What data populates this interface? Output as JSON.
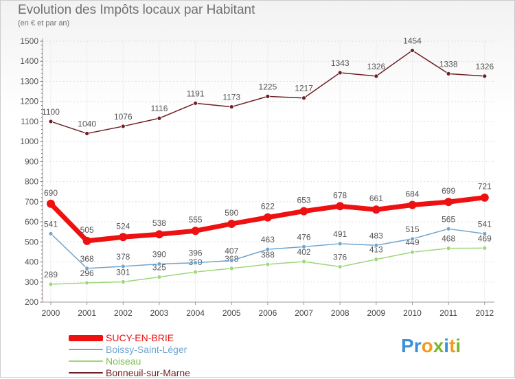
{
  "title": "Evolution des Impôts locaux par Habitant",
  "subtitle": "(en € et par an)",
  "logo": {
    "letters": [
      "P",
      "r",
      "o",
      "x",
      "i",
      "t",
      "i"
    ],
    "colors": [
      "#3a8fd8",
      "#3a8fd8",
      "#f29b1f",
      "#78b82a",
      "#3a8fd8",
      "#f29b1f",
      "#78b82a"
    ]
  },
  "chart_data": {
    "type": "line",
    "title": "Evolution des Impôts locaux par Habitant",
    "subtitle": "(en € et par an)",
    "x": [
      2000,
      2001,
      2002,
      2003,
      2004,
      2005,
      2006,
      2007,
      2008,
      2009,
      2010,
      2011,
      2012
    ],
    "ylim": [
      200,
      1500
    ],
    "yticks": [
      200,
      300,
      400,
      500,
      600,
      700,
      800,
      900,
      1000,
      1100,
      1200,
      1300,
      1400,
      1500
    ],
    "grid": true,
    "legend_position": "bottom-left",
    "series": [
      {
        "name": "Bonneuil-sur-Marne",
        "color": "#6e1f24",
        "values": [
          1100,
          1040,
          1076,
          1116,
          1191,
          1173,
          1225,
          1217,
          1343,
          1326,
          1454,
          1338,
          1326
        ]
      },
      {
        "name": "Noiseau",
        "color": "#9ed67a",
        "values": [
          289,
          296,
          301,
          325,
          350,
          368,
          388,
          402,
          376,
          413,
          449,
          468,
          469
        ]
      },
      {
        "name": "Boissy-Saint-Léger",
        "color": "#6fa5cf",
        "values": [
          541,
          368,
          378,
          390,
          396,
          407,
          463,
          476,
          491,
          483,
          515,
          565,
          541
        ]
      },
      {
        "name": "SUCY-EN-BRIE",
        "color": "#ee1111",
        "values": [
          690,
          505,
          524,
          538,
          555,
          590,
          622,
          653,
          678,
          661,
          684,
          699,
          721
        ]
      }
    ],
    "legend": [
      "SUCY-EN-BRIE",
      "Boissy-Saint-Léger",
      "Noiseau",
      "Bonneuil-sur-Marne"
    ]
  }
}
